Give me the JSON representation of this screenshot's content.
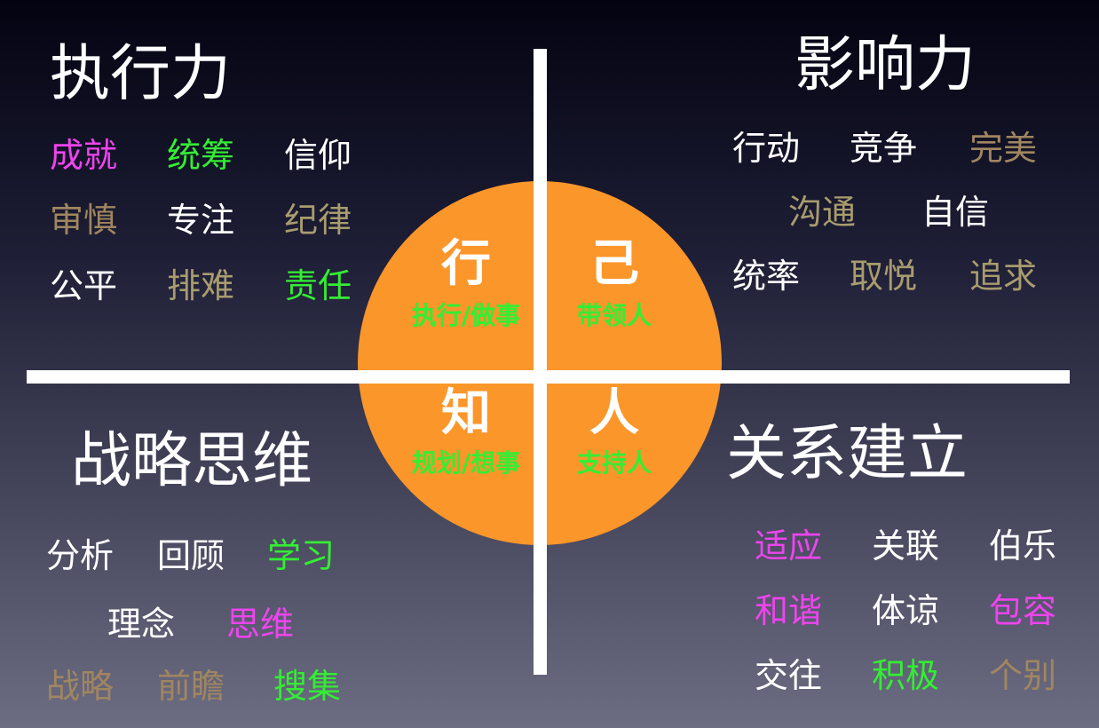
{
  "quadrants": {
    "top_left": {
      "title": "执行力",
      "words": [
        {
          "text": "成就",
          "color": "#ee44ee"
        },
        {
          "text": "统筹",
          "color": "#33ee33"
        },
        {
          "text": "信仰",
          "color": "#ffffff"
        },
        {
          "text": "审慎",
          "color": "#a08660"
        },
        {
          "text": "专注",
          "color": "#ffffff"
        },
        {
          "text": "纪律",
          "color": "#a89c6e"
        },
        {
          "text": "公平",
          "color": "#ffffff"
        },
        {
          "text": "排难",
          "color": "#a89c6e"
        },
        {
          "text": "责任",
          "color": "#33ee33"
        }
      ]
    },
    "top_right": {
      "title": "影响力",
      "words": [
        {
          "text": "行动",
          "color": "#ffffff"
        },
        {
          "text": "竞争",
          "color": "#ffffff"
        },
        {
          "text": "完美",
          "color": "#a08660"
        },
        {
          "text": "沟通",
          "color": "#a89c6e"
        },
        {
          "text": "自信",
          "color": "#ffffff"
        },
        {
          "text": "统率",
          "color": "#ffffff"
        },
        {
          "text": "取悦",
          "color": "#a89c6e"
        },
        {
          "text": "追求",
          "color": "#a89c6e"
        }
      ]
    },
    "bottom_left": {
      "title": "战略思维",
      "words": [
        {
          "text": "分析",
          "color": "#ffffff"
        },
        {
          "text": "回顾",
          "color": "#ffffff"
        },
        {
          "text": "学习",
          "color": "#33ee33"
        },
        {
          "text": "理念",
          "color": "#ffffff"
        },
        {
          "text": "思维",
          "color": "#ee44ee"
        },
        {
          "text": "战略",
          "color": "#a08660"
        },
        {
          "text": "前瞻",
          "color": "#a08660"
        },
        {
          "text": "搜集",
          "color": "#33ee33"
        }
      ]
    },
    "bottom_right": {
      "title": "关系建立",
      "words": [
        {
          "text": "适应",
          "color": "#ee44ee"
        },
        {
          "text": "关联",
          "color": "#ffffff"
        },
        {
          "text": "伯乐",
          "color": "#ffffff"
        },
        {
          "text": "和谐",
          "color": "#ee44ee"
        },
        {
          "text": "体谅",
          "color": "#ffffff"
        },
        {
          "text": "包容",
          "color": "#ee44ee"
        },
        {
          "text": "交往",
          "color": "#ffffff"
        },
        {
          "text": "积极",
          "color": "#33ee33"
        },
        {
          "text": "个别",
          "color": "#a08660"
        }
      ]
    }
  },
  "center": {
    "top_left": {
      "char": "行",
      "sub": "执行/做事"
    },
    "top_right": {
      "char": "己",
      "sub": "带领人"
    },
    "bottom_left": {
      "char": "知",
      "sub": "规划/想事"
    },
    "bottom_right": {
      "char": "人",
      "sub": "支持人"
    }
  },
  "colors": {
    "circle": "#fb962a",
    "magenta": "#ee44ee",
    "green": "#33ee33",
    "tan": "#a08660",
    "olive": "#a89c6e",
    "white": "#ffffff"
  }
}
